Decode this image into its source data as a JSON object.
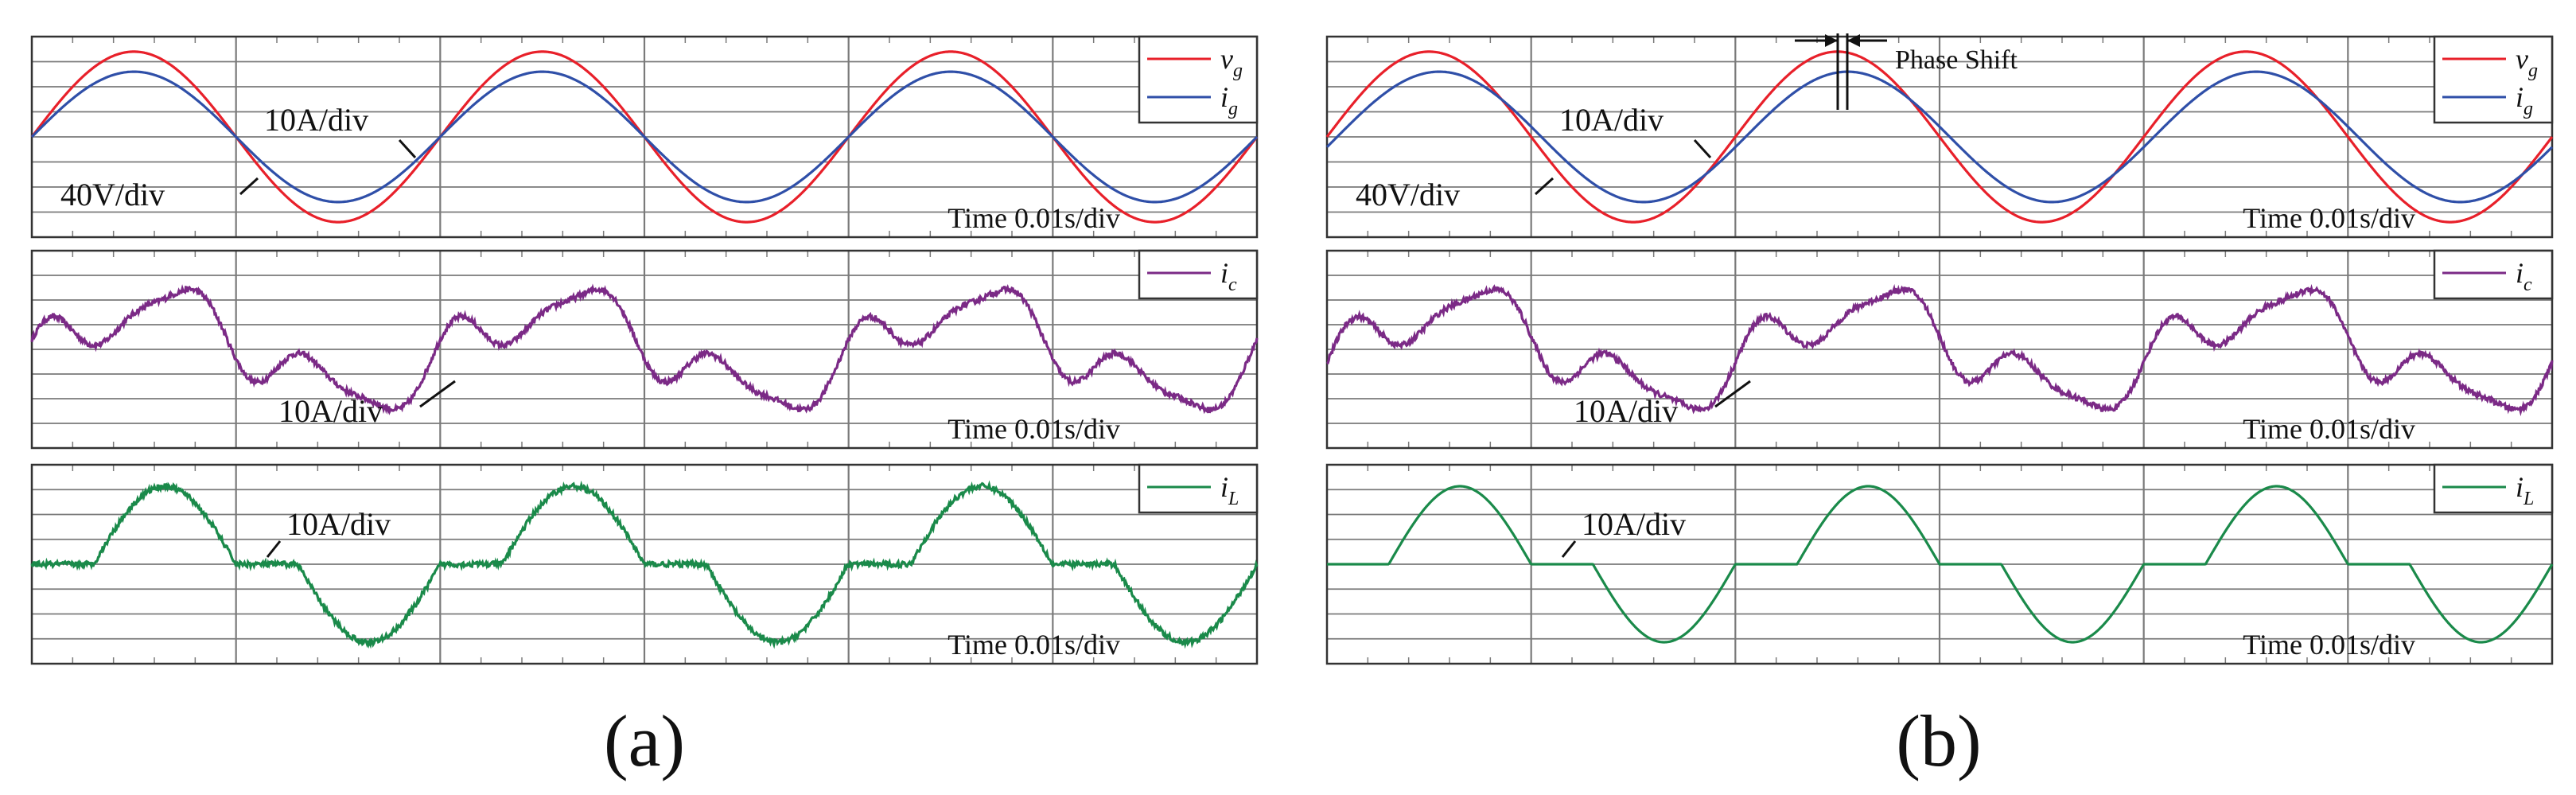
{
  "figure": {
    "captions": [
      "(a)",
      "(b)"
    ],
    "colors": {
      "vg": "#e8202a",
      "ig": "#2f4fa8",
      "ic": "#7b2a86",
      "iL": "#1a8a4a",
      "grid": "#7a7a7a",
      "frame": "#333333"
    }
  },
  "chart_data": [
    {
      "type": "line",
      "panel": "a-top",
      "legend": [
        {
          "symbol": "v",
          "sub": "g"
        },
        {
          "symbol": "i",
          "sub": "g"
        }
      ],
      "scale_labels": [
        "10A/div",
        "40V/div"
      ],
      "time_label": "Time 0.01s/div",
      "x": {
        "unit": "s",
        "range": [
          0,
          0.06
        ],
        "divisions": 6
      },
      "y": {
        "divisions": 8
      },
      "series": [
        {
          "symbol": "v",
          "sub": "g",
          "waveform": "sine",
          "amplitude_div": 3.4,
          "freq_hz": 50,
          "phase_deg": 0
        },
        {
          "symbol": "i",
          "sub": "g",
          "waveform": "sine",
          "amplitude_div": 2.6,
          "freq_hz": 50,
          "phase_deg": 0
        }
      ]
    },
    {
      "type": "line",
      "panel": "b-top",
      "legend": [
        {
          "symbol": "v",
          "sub": "g"
        },
        {
          "symbol": "i",
          "sub": "g"
        }
      ],
      "scale_labels": [
        "10A/div",
        "40V/div"
      ],
      "time_label": "Time 0.01s/div",
      "annotation": "Phase Shift",
      "x": {
        "unit": "s",
        "range": [
          0,
          0.06
        ],
        "divisions": 6
      },
      "y": {
        "divisions": 8
      },
      "series": [
        {
          "symbol": "v",
          "sub": "g",
          "waveform": "sine",
          "amplitude_div": 3.4,
          "freq_hz": 50,
          "phase_deg": 0
        },
        {
          "symbol": "i",
          "sub": "g",
          "waveform": "sine",
          "amplitude_div": 2.6,
          "freq_hz": 50,
          "phase_deg": 9
        }
      ]
    },
    {
      "type": "line",
      "panel": "a-middle",
      "legend": [
        {
          "symbol": "i",
          "sub": "c"
        }
      ],
      "scale_labels": [
        "10A/div"
      ],
      "time_label": "Time 0.01s/div",
      "x": {
        "unit": "s",
        "range": [
          0,
          0.06
        ],
        "divisions": 6
      },
      "y": {
        "divisions": 8
      },
      "series": [
        {
          "symbol": "i",
          "sub": "c",
          "waveform": "compensation",
          "amplitude_div": 2.6,
          "freq_hz": 50,
          "noise": true
        }
      ]
    },
    {
      "type": "line",
      "panel": "b-middle",
      "legend": [
        {
          "symbol": "i",
          "sub": "c"
        }
      ],
      "scale_labels": [
        "10A/div"
      ],
      "time_label": "Time 0.01s/div",
      "x": {
        "unit": "s",
        "range": [
          0,
          0.06
        ],
        "divisions": 6
      },
      "y": {
        "divisions": 8
      },
      "series": [
        {
          "symbol": "i",
          "sub": "c",
          "waveform": "compensation",
          "amplitude_div": 2.6,
          "freq_hz": 50,
          "phase_deg": 9,
          "noise": true
        }
      ]
    },
    {
      "type": "line",
      "panel": "a-bottom",
      "legend": [
        {
          "symbol": "i",
          "sub": "L"
        }
      ],
      "scale_labels": [
        "10A/div"
      ],
      "time_label": "Time 0.01s/div",
      "x": {
        "unit": "s",
        "range": [
          0,
          0.06
        ],
        "divisions": 6
      },
      "y": {
        "divisions": 8
      },
      "series": [
        {
          "symbol": "i",
          "sub": "L",
          "waveform": "phase-controlled",
          "amplitude_div": 3.2,
          "freq_hz": 50,
          "noise": true
        }
      ]
    },
    {
      "type": "line",
      "panel": "b-bottom",
      "legend": [
        {
          "symbol": "i",
          "sub": "L"
        }
      ],
      "scale_labels": [
        "10A/div"
      ],
      "time_label": "Time 0.01s/div",
      "x": {
        "unit": "s",
        "range": [
          0,
          0.06
        ],
        "divisions": 6
      },
      "y": {
        "divisions": 8
      },
      "series": [
        {
          "symbol": "i",
          "sub": "L",
          "waveform": "phase-controlled",
          "amplitude_div": 3.2,
          "freq_hz": 50,
          "noise": false
        }
      ]
    }
  ]
}
